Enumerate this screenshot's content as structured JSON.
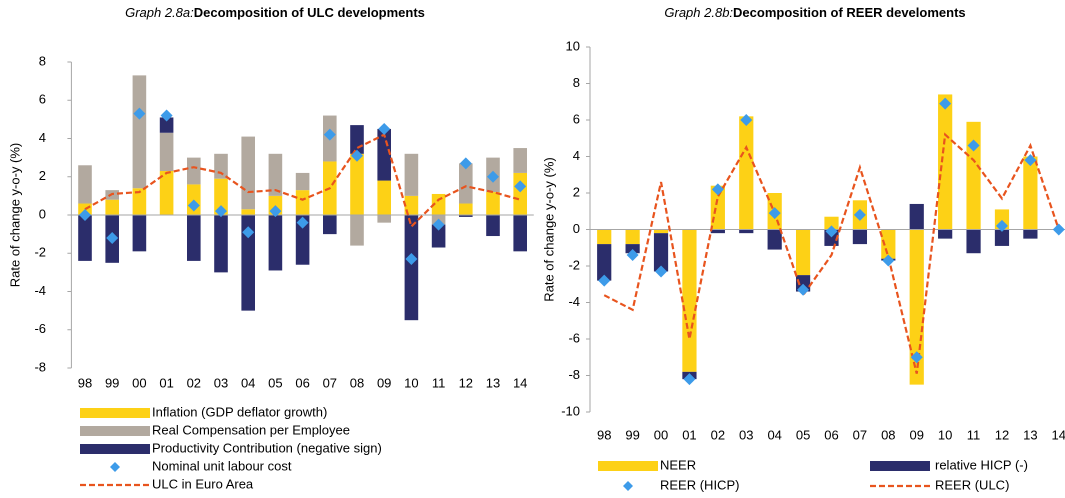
{
  "chart_data": [
    {
      "type": "bar",
      "graph_label": "Graph 2.8a:",
      "title": "Decomposition of ULC developments",
      "ylabel": "Rate of change y-o-y (%)",
      "categories": [
        "98",
        "99",
        "00",
        "01",
        "02",
        "03",
        "04",
        "05",
        "06",
        "07",
        "08",
        "09",
        "10",
        "11",
        "12",
        "13",
        "14"
      ],
      "ylim": [
        -8,
        8
      ],
      "yticks": [
        -8,
        -6,
        -4,
        -2,
        0,
        2,
        4,
        6,
        8
      ],
      "legend": "bottom",
      "series": [
        {
          "name": "Inflation (GDP deflator growth)",
          "kind": "bar",
          "color": "#FDD116",
          "values": [
            0.6,
            0.8,
            1.4,
            2.3,
            1.6,
            1.9,
            0.3,
            1.0,
            1.3,
            2.8,
            3.2,
            1.8,
            1.0,
            1.1,
            0.6,
            1.2,
            2.2
          ]
        },
        {
          "name": "Real Compensation per Employee",
          "kind": "bar",
          "color": "#B2A99F",
          "values": [
            2.0,
            0.5,
            5.9,
            2.0,
            1.4,
            1.3,
            3.8,
            2.2,
            0.9,
            2.4,
            -1.6,
            -0.4,
            2.2,
            -0.5,
            2.1,
            1.8,
            1.3
          ]
        },
        {
          "name": "Productivity Contribution (negative sign)",
          "kind": "bar",
          "color": "#2B2D6B",
          "values": [
            -2.4,
            -2.5,
            -1.9,
            0.8,
            -2.4,
            -3.0,
            -5.0,
            -2.9,
            -2.6,
            -1.0,
            1.5,
            2.7,
            -5.5,
            -1.2,
            -0.1,
            -1.1,
            -1.9
          ]
        },
        {
          "name": "Nominal unit labour cost",
          "kind": "scatter",
          "color": "#3D9BE9",
          "values": [
            0.0,
            -1.2,
            5.3,
            5.2,
            0.5,
            0.2,
            -0.9,
            0.2,
            -0.4,
            4.2,
            3.1,
            4.5,
            -2.3,
            -0.5,
            2.7,
            2.0,
            1.5
          ]
        },
        {
          "name": "ULC in Euro Area",
          "kind": "line",
          "color": "#E8541E",
          "values": [
            0.3,
            1.1,
            1.2,
            2.2,
            2.5,
            2.2,
            1.2,
            1.3,
            0.8,
            1.4,
            3.5,
            4.2,
            -0.6,
            0.8,
            1.5,
            1.2,
            0.8
          ]
        }
      ]
    },
    {
      "type": "bar",
      "graph_label": "Graph 2.8b:",
      "title": "Decomposition of REER develoments",
      "ylabel": "Rate of change y-o-y (%)",
      "categories": [
        "98",
        "99",
        "00",
        "01",
        "02",
        "03",
        "04",
        "05",
        "06",
        "07",
        "08",
        "09",
        "10",
        "11",
        "12",
        "13",
        "14"
      ],
      "ylim": [
        -10,
        10
      ],
      "yticks": [
        -10,
        -8,
        -6,
        -4,
        -2,
        0,
        2,
        4,
        6,
        8,
        10
      ],
      "legend": "bottom",
      "series": [
        {
          "name": "NEER",
          "kind": "bar",
          "color": "#FDD116",
          "values": [
            -0.8,
            -0.8,
            -0.2,
            -7.8,
            2.4,
            6.2,
            2.0,
            -2.5,
            0.7,
            1.6,
            -1.6,
            -8.5,
            7.4,
            5.9,
            1.1,
            4.0,
            0.0
          ]
        },
        {
          "name": "relative HICP (-)",
          "kind": "bar",
          "color": "#2B2D6B",
          "values": [
            -2.0,
            -0.5,
            -2.1,
            -0.4,
            -0.2,
            -0.2,
            -1.1,
            -0.9,
            -0.9,
            -0.8,
            -0.1,
            1.4,
            -0.5,
            -1.3,
            -0.9,
            -0.5,
            0.0
          ]
        },
        {
          "name": "REER (HICP)",
          "kind": "scatter",
          "color": "#3D9BE9",
          "values": [
            -2.8,
            -1.4,
            -2.3,
            -8.2,
            2.2,
            6.0,
            0.9,
            -3.3,
            -0.1,
            0.8,
            -1.7,
            -7.0,
            6.9,
            4.6,
            0.2,
            3.8,
            0.0
          ]
        },
        {
          "name": "REER (ULC)",
          "kind": "line",
          "color": "#E8541E",
          "values": [
            -3.6,
            -4.4,
            2.6,
            -6.0,
            1.8,
            4.5,
            0.9,
            -3.6,
            -1.4,
            3.4,
            -1.5,
            -7.9,
            5.2,
            3.8,
            1.7,
            4.6,
            0.0
          ]
        }
      ]
    }
  ]
}
